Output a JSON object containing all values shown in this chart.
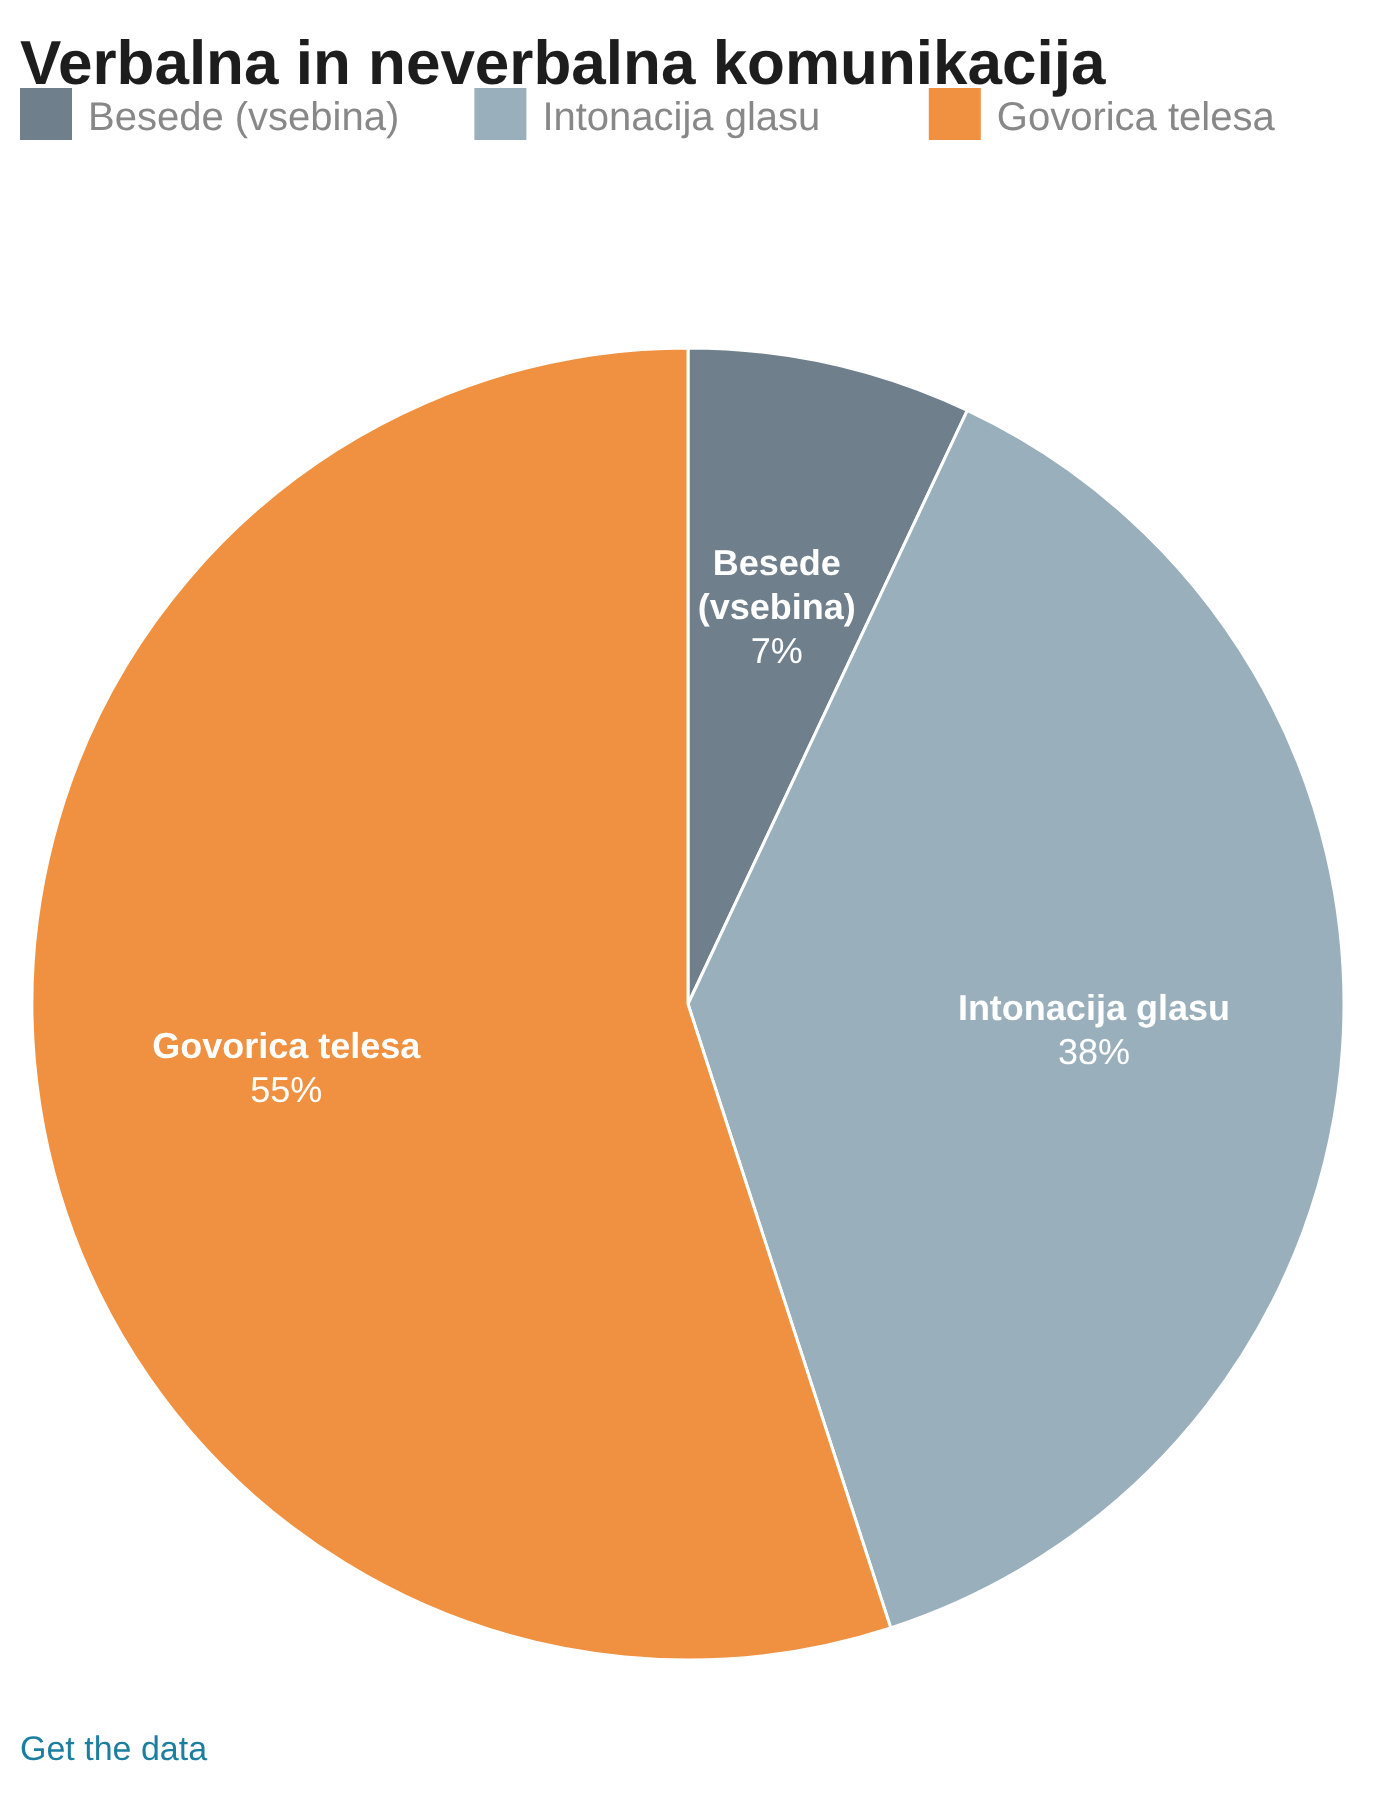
{
  "chart_data": {
    "type": "pie",
    "title": "Verbalna in neverbalna komunikacija",
    "categories": [
      "Besede (vsebina)",
      "Intonacija glasu",
      "Govorica telesa"
    ],
    "values": [
      7,
      38,
      55
    ],
    "value_labels": [
      "7%",
      "38%",
      "55%"
    ],
    "colors": [
      "#6f7f8c",
      "#9aafbc",
      "#ef9140"
    ],
    "legend": "top left",
    "annotations": [
      "Get the data"
    ]
  }
}
